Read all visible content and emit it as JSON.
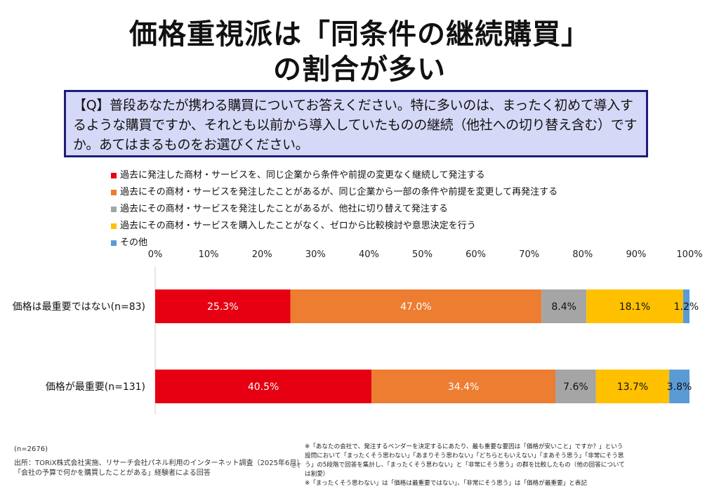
{
  "title": {
    "line1": "価格重視派は「同条件の継続購買」",
    "line2": "の割合が多い"
  },
  "question": "【Q】普段あなたが携わる購買についてお答えください。特に多いのは、まったく初めて導入するような購買ですか、それとも以前から導入していたものの継続（他社への切り替え含む）ですか。あてはまるものをお選びください。",
  "chart_data": {
    "type": "bar",
    "stacked": true,
    "orientation": "horizontal",
    "percent_scale": true,
    "xlim": [
      0,
      100
    ],
    "x_ticks": [
      "0%",
      "10%",
      "20%",
      "30%",
      "40%",
      "50%",
      "60%",
      "70%",
      "80%",
      "90%",
      "100%"
    ],
    "categories": [
      "価格は最重要ではない(n=83)",
      "価格が最重要(n=131)"
    ],
    "series": [
      {
        "name": "過去に発注した商材・サービスを、同じ企業から条件や前提の変更なく継続して発注する",
        "color": "#e60012",
        "values": [
          25.3,
          40.5
        ],
        "labels": [
          "25.3%",
          "40.5%"
        ]
      },
      {
        "name": "過去にその商材・サービスを発注したことがあるが、同じ企業から一部の条件や前提を変更して再発注する",
        "color": "#ed7d31",
        "values": [
          47.0,
          34.4
        ],
        "labels": [
          "47.0%",
          "34.4%"
        ]
      },
      {
        "name": "過去にその商材・サービスを発注したことがあるが、他社に切り替えて発注する",
        "color": "#a5a5a5",
        "values": [
          8.4,
          7.6
        ],
        "labels": [
          "8.4%",
          "7.6%"
        ]
      },
      {
        "name": "過去にその商材・サービスを購入したことがなく、ゼロから比較検討や意思決定を行う",
        "color": "#ffc000",
        "values": [
          18.1,
          13.7
        ],
        "labels": [
          "18.1%",
          "13.7%"
        ]
      },
      {
        "name": "その他",
        "color": "#5b9bd5",
        "values": [
          1.2,
          3.8
        ],
        "labels": [
          "1.2%",
          "3.8%"
        ]
      }
    ],
    "legend_position": "top-left",
    "grid": false
  },
  "footer": {
    "n": "(n=2676)",
    "source_line1": "出所：TORiX株式会社実施、リサーチ会社パネル利用のインターネット調査（2025年6月）",
    "source_line2": "「会社の予算で何かを購買したことがある」経験者による回答",
    "copyright": "©T",
    "note1": "※「あなたの会社で、発注するベンダーを決定するにあたり、最も重要な要因は「価格が安いこと」ですか？」という設問において「まったくそう思わない」「あまりそう思わない」「どちらともいえない」「まあそう思う」「非常にそう思う」の5段階で回答を集計し、「まったくそう思わない」と「非常にそう思う」の群を比較したもの（他の回答については割愛）",
    "note2": "※「まったくそう思わない」は「価格は最重要ではない」、「非常にそう思う」は「価格が最重要」と表記"
  }
}
